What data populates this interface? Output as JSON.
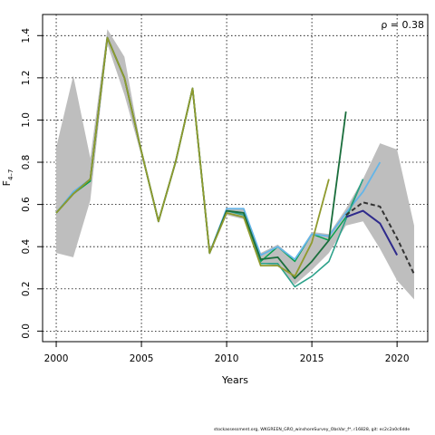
{
  "chart_data": {
    "type": "line",
    "xlabel": "Years",
    "ylabel": "F",
    "ylabel_sub": "4–7",
    "annotation": "ρ = 0.38",
    "xlim": [
      1999.2,
      2021.8
    ],
    "ylim": [
      -0.05,
      1.5
    ],
    "x_ticks": [
      2000,
      2005,
      2010,
      2015,
      2020
    ],
    "y_ticks": [
      0.0,
      0.2,
      0.4,
      0.6,
      0.8,
      1.0,
      1.2,
      1.4
    ],
    "y_tick_labels": [
      "0.0",
      "0.2",
      "0.4",
      "0.6",
      "0.8",
      "1.0",
      "1.2",
      "1.4"
    ],
    "grid": true,
    "band": {
      "color": "#bebebe",
      "x": [
        2000,
        2001,
        2002,
        2003,
        2004,
        2005,
        2006,
        2007,
        2008,
        2009,
        2010,
        2011,
        2012,
        2013,
        2014,
        2015,
        2016,
        2017,
        2018,
        2019,
        2020,
        2021
      ],
      "upper": [
        0.87,
        1.21,
        0.82,
        1.43,
        1.3,
        0.86,
        0.52,
        0.81,
        1.15,
        0.37,
        0.58,
        0.58,
        0.37,
        0.41,
        0.34,
        0.47,
        0.46,
        0.58,
        0.72,
        0.89,
        0.86,
        0.5
      ],
      "lower": [
        0.37,
        0.35,
        0.62,
        1.36,
        1.12,
        0.83,
        0.51,
        0.79,
        1.13,
        0.36,
        0.55,
        0.53,
        0.32,
        0.31,
        0.22,
        0.29,
        0.37,
        0.5,
        0.52,
        0.39,
        0.24,
        0.15
      ]
    },
    "series": [
      {
        "color": "#00a14b",
        "width": 1.4,
        "x": [
          2000,
          2001,
          2002,
          2003,
          2004,
          2005,
          2006,
          2007,
          2008,
          2009,
          2010,
          2011,
          2012,
          2013,
          2014,
          2015,
          2016,
          2017,
          2018
        ],
        "y": [
          0.56,
          0.65,
          0.71,
          1.39,
          1.2,
          0.85,
          0.52,
          0.8,
          1.15,
          0.37,
          0.57,
          0.56,
          0.33,
          0.4,
          0.33,
          0.46,
          0.43,
          0.54,
          0.72
        ]
      },
      {
        "color": "#64b5e8",
        "width": 1.8,
        "x": [
          2000,
          2001,
          2002,
          2003,
          2004,
          2005,
          2006,
          2007,
          2008,
          2009,
          2010,
          2011,
          2012,
          2013,
          2014,
          2015,
          2016,
          2017,
          2018,
          2019
        ],
        "y": [
          0.56,
          0.66,
          0.72,
          1.39,
          1.2,
          0.85,
          0.52,
          0.8,
          1.15,
          0.37,
          0.58,
          0.58,
          0.36,
          0.4,
          0.34,
          0.46,
          0.45,
          0.56,
          0.66,
          0.8
        ]
      },
      {
        "color": "#2ca18a",
        "width": 1.6,
        "x": [
          2000,
          2001,
          2002,
          2003,
          2004,
          2005,
          2006,
          2007,
          2008,
          2009,
          2010,
          2011,
          2012,
          2013,
          2014,
          2015,
          2016,
          2017,
          2018
        ],
        "y": [
          0.56,
          0.65,
          0.72,
          1.39,
          1.2,
          0.85,
          0.52,
          0.8,
          1.15,
          0.37,
          0.57,
          0.55,
          0.32,
          0.32,
          0.21,
          0.26,
          0.33,
          0.53,
          0.72
        ]
      },
      {
        "color": "#1a6e3c",
        "width": 1.8,
        "x": [
          2000,
          2001,
          2002,
          2003,
          2004,
          2005,
          2006,
          2007,
          2008,
          2009,
          2010,
          2011,
          2012,
          2013,
          2014,
          2015,
          2016,
          2017
        ],
        "y": [
          0.56,
          0.65,
          0.72,
          1.39,
          1.2,
          0.85,
          0.52,
          0.8,
          1.15,
          0.37,
          0.57,
          0.56,
          0.34,
          0.35,
          0.25,
          0.33,
          0.43,
          1.04
        ]
      },
      {
        "color": "#8f9a2e",
        "width": 1.8,
        "x": [
          2000,
          2001,
          2002,
          2003,
          2004,
          2005,
          2006,
          2007,
          2008,
          2009,
          2010,
          2011,
          2012,
          2013,
          2014,
          2015,
          2016
        ],
        "y": [
          0.56,
          0.65,
          0.72,
          1.39,
          1.2,
          0.85,
          0.52,
          0.8,
          1.15,
          0.37,
          0.56,
          0.54,
          0.31,
          0.31,
          0.26,
          0.42,
          0.72
        ]
      },
      {
        "color": "#2e2a8c",
        "width": 2.0,
        "x": [
          2017,
          2018,
          2019,
          2020
        ],
        "y": [
          0.54,
          0.57,
          0.51,
          0.36
        ]
      },
      {
        "color": "#333333",
        "width": 2.0,
        "dashed": true,
        "x": [
          2017,
          2018,
          2019,
          2020,
          2021
        ],
        "y": [
          0.55,
          0.61,
          0.59,
          0.44,
          0.27
        ]
      }
    ]
  },
  "footer": "stockassessment.org, WKGREEN_GRO_winshoreSurvey_ObsVar_f*, r16828, git: ec2c2a0c6dde"
}
